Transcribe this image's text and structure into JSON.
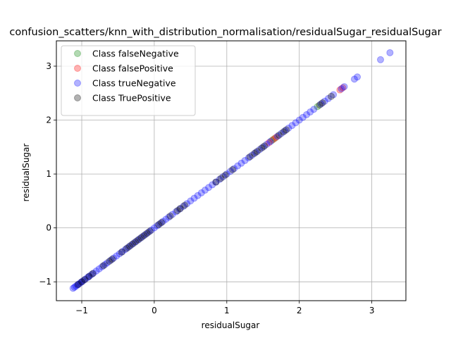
{
  "chart_data": {
    "type": "scatter",
    "title": "confusion_scatters/knn_with_distribution_normalisation/residualSugar_residualSugar",
    "xlabel": "residualSugar",
    "ylabel": "residualSugar",
    "xlim": [
      -1.35,
      3.47
    ],
    "ylim": [
      -1.35,
      3.47
    ],
    "xticks": [
      -1,
      0,
      1,
      2,
      3
    ],
    "yticks": [
      -1,
      0,
      1,
      2,
      3
    ],
    "grid": true,
    "legend_position": "top-left",
    "series": [
      {
        "name": "Class falseNegative",
        "color": "#008000",
        "alpha": 0.3,
        "x": [
          1.62,
          1.66,
          2.25
        ],
        "y": [
          1.62,
          1.66,
          2.25
        ]
      },
      {
        "name": "Class falsePositive",
        "color": "#ff0000",
        "alpha": 0.3,
        "x": [
          1.58,
          1.64,
          1.68,
          2.56,
          2.6
        ],
        "y": [
          1.58,
          1.64,
          1.68,
          2.56,
          2.6
        ]
      },
      {
        "name": "Class trueNegative",
        "color": "#0000ff",
        "alpha": 0.3,
        "x": [
          -1.12,
          -1.1,
          -1.08,
          -1.06,
          -1.04,
          -1.02,
          -1.0,
          -0.98,
          -0.95,
          -0.92,
          -0.9,
          -0.87,
          -0.84,
          -0.8,
          -0.76,
          -0.72,
          -0.68,
          -0.65,
          -0.6,
          -0.56,
          -0.52,
          -0.48,
          -0.44,
          -0.4,
          -0.36,
          -0.32,
          -0.28,
          -0.24,
          -0.2,
          -0.16,
          -0.12,
          -0.08,
          -0.04,
          0.0,
          0.04,
          0.08,
          0.12,
          0.16,
          0.2,
          0.25,
          0.3,
          0.35,
          0.4,
          0.45,
          0.5,
          0.55,
          0.6,
          0.65,
          0.7,
          0.75,
          0.8,
          0.85,
          0.9,
          0.95,
          1.0,
          1.05,
          1.1,
          1.15,
          1.2,
          1.25,
          1.3,
          1.35,
          1.4,
          1.45,
          1.5,
          1.55,
          1.6,
          1.7,
          1.75,
          1.8,
          1.85,
          1.9,
          1.95,
          2.0,
          2.05,
          2.1,
          2.15,
          2.2,
          2.3,
          2.35,
          2.4,
          2.47,
          2.58,
          2.62,
          2.76,
          2.8,
          3.12,
          3.25
        ],
        "y": [
          -1.12,
          -1.1,
          -1.08,
          -1.06,
          -1.04,
          -1.02,
          -1.0,
          -0.98,
          -0.95,
          -0.92,
          -0.9,
          -0.87,
          -0.84,
          -0.8,
          -0.76,
          -0.72,
          -0.68,
          -0.65,
          -0.6,
          -0.56,
          -0.52,
          -0.48,
          -0.44,
          -0.4,
          -0.36,
          -0.32,
          -0.28,
          -0.24,
          -0.2,
          -0.16,
          -0.12,
          -0.08,
          -0.04,
          0.0,
          0.04,
          0.08,
          0.12,
          0.16,
          0.2,
          0.25,
          0.3,
          0.35,
          0.4,
          0.45,
          0.5,
          0.55,
          0.6,
          0.65,
          0.7,
          0.75,
          0.8,
          0.85,
          0.9,
          0.95,
          1.0,
          1.05,
          1.1,
          1.15,
          1.2,
          1.25,
          1.3,
          1.35,
          1.4,
          1.45,
          1.5,
          1.55,
          1.6,
          1.7,
          1.75,
          1.8,
          1.85,
          1.9,
          1.95,
          2.0,
          2.05,
          2.1,
          2.15,
          2.2,
          2.3,
          2.35,
          2.4,
          2.47,
          2.58,
          2.62,
          2.76,
          2.8,
          3.12,
          3.25
        ]
      },
      {
        "name": "Class TruePositive",
        "color": "#000000",
        "alpha": 0.3,
        "x": [
          -1.05,
          -1.0,
          -0.96,
          -0.9,
          -0.85,
          -0.7,
          -0.62,
          -0.58,
          -0.45,
          -0.38,
          -0.34,
          -0.3,
          -0.26,
          -0.22,
          -0.18,
          -0.14,
          -0.1,
          -0.06,
          0.06,
          0.1,
          0.22,
          0.32,
          0.36,
          0.42,
          0.85,
          0.92,
          0.98,
          1.08,
          1.32,
          1.38,
          1.42,
          1.48,
          1.52,
          1.72,
          1.78,
          1.82,
          2.28,
          2.32,
          2.44
        ],
        "y": [
          -1.05,
          -1.0,
          -0.96,
          -0.9,
          -0.85,
          -0.7,
          -0.62,
          -0.58,
          -0.45,
          -0.38,
          -0.34,
          -0.3,
          -0.26,
          -0.22,
          -0.18,
          -0.14,
          -0.1,
          -0.06,
          0.06,
          0.1,
          0.22,
          0.32,
          0.36,
          0.42,
          0.85,
          0.92,
          0.98,
          1.08,
          1.32,
          1.38,
          1.42,
          1.48,
          1.52,
          1.72,
          1.78,
          1.82,
          2.28,
          2.32,
          2.44
        ]
      }
    ]
  }
}
